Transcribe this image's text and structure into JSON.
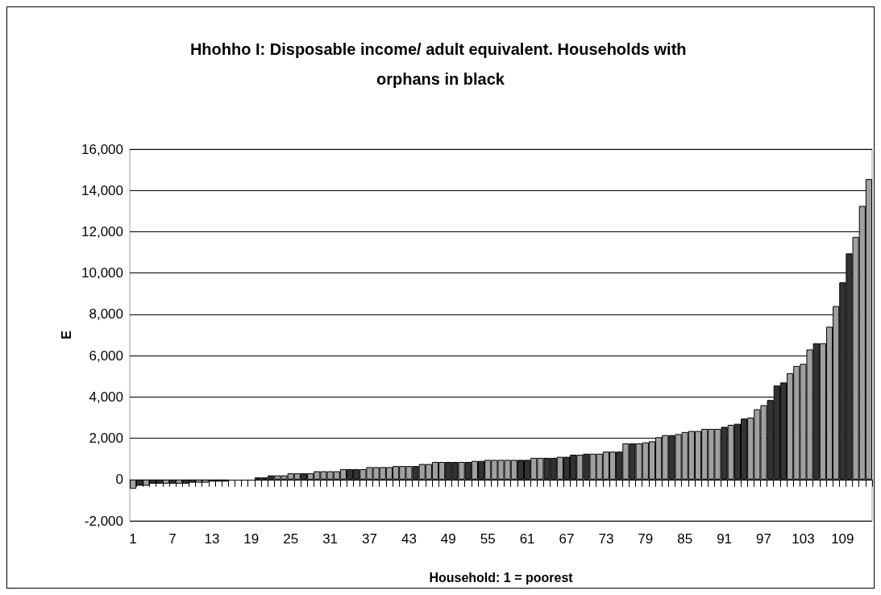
{
  "chart_data": {
    "type": "bar",
    "title": "Hhohho I: Disposable income/ adult equivalent. Households with orphans in black",
    "xlabel": "Household: 1 = poorest",
    "ylabel": "E",
    "categories": [
      "1",
      null,
      null,
      null,
      null,
      null,
      "7",
      null,
      null,
      null,
      null,
      null,
      "13",
      null,
      null,
      null,
      null,
      null,
      "19",
      null,
      null,
      null,
      null,
      null,
      "25",
      null,
      null,
      null,
      null,
      null,
      "31",
      null,
      null,
      null,
      null,
      null,
      "37",
      null,
      null,
      null,
      null,
      null,
      "43",
      null,
      null,
      null,
      null,
      null,
      "49",
      null,
      null,
      null,
      null,
      null,
      "55",
      null,
      null,
      null,
      null,
      null,
      "61",
      null,
      null,
      null,
      null,
      null,
      "67",
      null,
      null,
      null,
      null,
      null,
      "73",
      null,
      null,
      null,
      null,
      null,
      "79",
      null,
      null,
      null,
      null,
      null,
      "85",
      null,
      null,
      null,
      null,
      null,
      "91",
      null,
      null,
      null,
      null,
      null,
      "97",
      null,
      null,
      null,
      null,
      null,
      "103",
      null,
      null,
      null,
      null,
      null,
      "109",
      null,
      null,
      null,
      null
    ],
    "values": [
      -450,
      -300,
      -300,
      -200,
      -200,
      -200,
      -200,
      -200,
      -200,
      -150,
      -150,
      -150,
      -100,
      -100,
      -100,
      null,
      null,
      null,
      null,
      100,
      100,
      200,
      200,
      200,
      300,
      300,
      300,
      300,
      400,
      400,
      400,
      400,
      500,
      500,
      500,
      500,
      600,
      600,
      600,
      600,
      650,
      650,
      650,
      650,
      750,
      750,
      850,
      850,
      850,
      850,
      850,
      850,
      900,
      900,
      950,
      950,
      950,
      950,
      950,
      950,
      950,
      1050,
      1050,
      1050,
      1050,
      1100,
      1100,
      1200,
      1200,
      1250,
      1250,
      1250,
      1350,
      1350,
      1350,
      1750,
      1750,
      1750,
      1800,
      1850,
      2050,
      2150,
      2150,
      2200,
      2300,
      2350,
      2350,
      2450,
      2450,
      2450,
      2550,
      2650,
      2700,
      2950,
      3000,
      3400,
      3600,
      3850,
      4550,
      4700,
      5150,
      5500,
      5600,
      6300,
      6600,
      6600,
      7400,
      8400,
      9550,
      10950,
      11750,
      13250,
      14550
    ],
    "colors": [
      "#a0a0a0",
      "#333333",
      "#a0a0a0",
      "#333333",
      "#333333",
      "#a0a0a0",
      "#333333",
      "#a0a0a0",
      "#333333",
      "#333333",
      "#a0a0a0",
      "#a0a0a0",
      "#333333",
      "#333333",
      "#333333",
      "#a0a0a0",
      "#a0a0a0",
      "#a0a0a0",
      "#a0a0a0",
      "#333333",
      "#333333",
      "#333333",
      "#a0a0a0",
      "#a0a0a0",
      "#a0a0a0",
      "#a0a0a0",
      "#333333",
      "#a0a0a0",
      "#a0a0a0",
      "#a0a0a0",
      "#a0a0a0",
      "#a0a0a0",
      "#a0a0a0",
      "#333333",
      "#333333",
      "#a0a0a0",
      "#a0a0a0",
      "#a0a0a0",
      "#a0a0a0",
      "#a0a0a0",
      "#a0a0a0",
      "#a0a0a0",
      "#a0a0a0",
      "#333333",
      "#a0a0a0",
      "#a0a0a0",
      "#a0a0a0",
      "#a0a0a0",
      "#333333",
      "#333333",
      "#a0a0a0",
      "#333333",
      "#a0a0a0",
      "#333333",
      "#a0a0a0",
      "#a0a0a0",
      "#a0a0a0",
      "#a0a0a0",
      "#a0a0a0",
      "#333333",
      "#333333",
      "#a0a0a0",
      "#a0a0a0",
      "#333333",
      "#333333",
      "#a0a0a0",
      "#333333",
      "#333333",
      "#a0a0a0",
      "#333333",
      "#a0a0a0",
      "#a0a0a0",
      "#a0a0a0",
      "#a0a0a0",
      "#333333",
      "#a0a0a0",
      "#333333",
      "#a0a0a0",
      "#a0a0a0",
      "#a0a0a0",
      "#a0a0a0",
      "#a0a0a0",
      "#333333",
      "#a0a0a0",
      "#a0a0a0",
      "#a0a0a0",
      "#a0a0a0",
      "#a0a0a0",
      "#a0a0a0",
      "#a0a0a0",
      "#333333",
      "#a0a0a0",
      "#333333",
      "#333333",
      "#a0a0a0",
      "#a0a0a0",
      "#a0a0a0",
      "#333333",
      "#333333",
      "#333333",
      "#a0a0a0",
      "#a0a0a0",
      "#a0a0a0",
      "#a0a0a0",
      "#333333",
      "#a0a0a0",
      "#a0a0a0",
      "#a0a0a0",
      "#333333",
      "#333333",
      "#a0a0a0",
      "#a0a0a0",
      "#a0a0a0"
    ],
    "ylim": [
      -2000,
      16000
    ],
    "yticks": [
      {
        "value": -2000,
        "label": "-2,000"
      },
      0,
      {
        "value": 2000,
        "label": "2,000"
      },
      {
        "value": 4000,
        "label": "4,000"
      },
      {
        "value": 6000,
        "label": "6,000"
      },
      {
        "value": 8000,
        "label": "8,000"
      },
      {
        "value": 10000,
        "label": "10,000"
      },
      {
        "value": 12000,
        "label": "12,000"
      },
      {
        "value": 14000,
        "label": "14,000"
      },
      {
        "value": 16000,
        "label": "16,000"
      }
    ],
    "grid": "y"
  }
}
